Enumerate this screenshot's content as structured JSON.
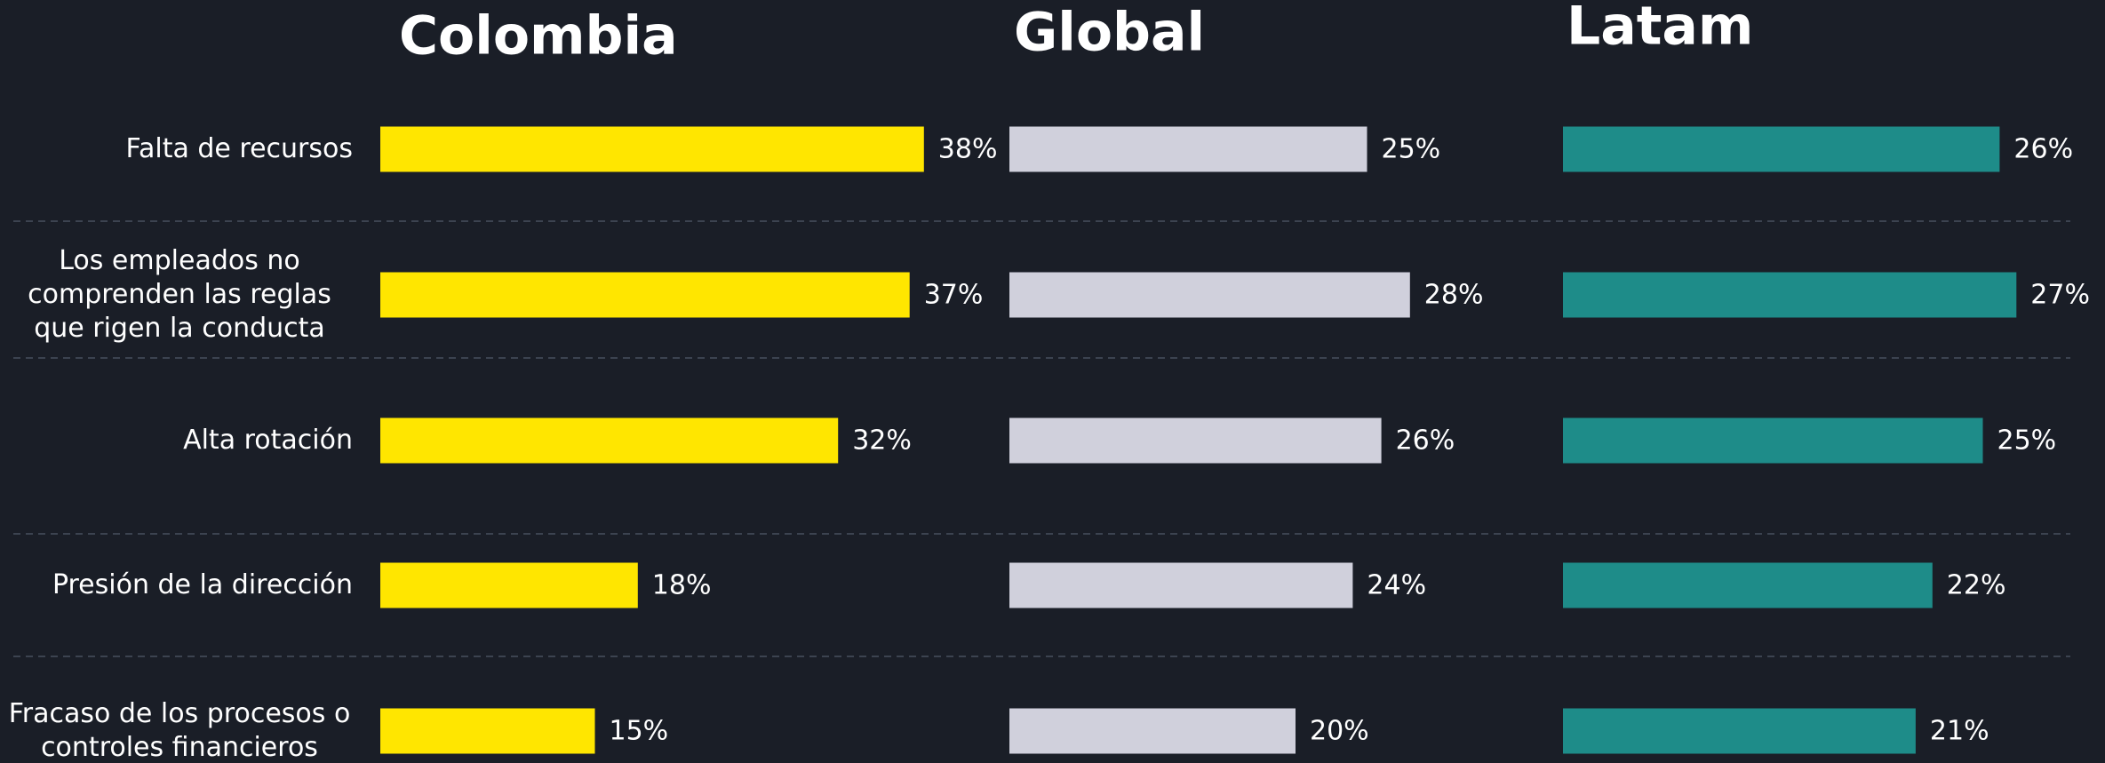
{
  "chart_data": {
    "type": "bar",
    "orientation": "horizontal",
    "categories": [
      "Falta de recursos",
      "Los empleados no comprenden las reglas que rigen la conducta",
      "Alta rotación",
      "Presión de la dirección",
      "Fracaso de los procesos o controles financieros"
    ],
    "series": [
      {
        "name": "Colombia",
        "color": "#ffe600",
        "values": [
          38,
          37,
          32,
          18,
          15
        ],
        "value_labels": [
          "38%",
          "37%",
          "32%",
          "18%",
          "15%"
        ]
      },
      {
        "name": "Global",
        "color": "#d0d0dc",
        "values": [
          25,
          28,
          26,
          24,
          20
        ],
        "value_labels": [
          "25%",
          "28%",
          "26%",
          "24%",
          "20%"
        ]
      },
      {
        "name": "Latam",
        "color": "#1e8c89",
        "values": [
          26,
          27,
          25,
          22,
          21
        ],
        "value_labels": [
          "26%",
          "27%",
          "25%",
          "22%",
          "21%"
        ]
      }
    ]
  }
}
